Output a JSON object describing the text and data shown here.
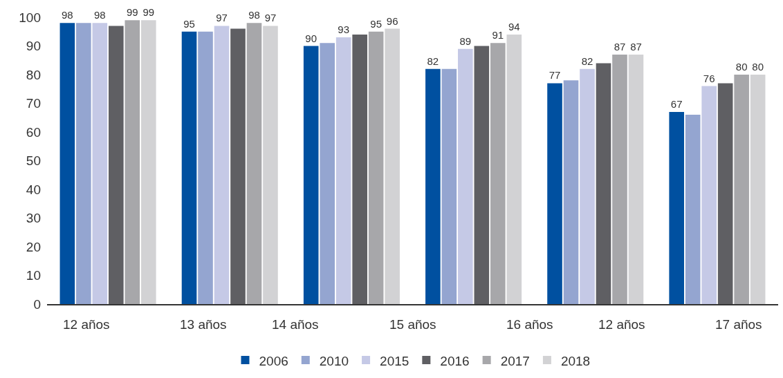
{
  "chart_data": {
    "type": "bar",
    "categories": [
      null,
      null,
      null,
      null,
      null,
      null
    ],
    "annotations": [
      "12 años",
      "13 años",
      "14 años",
      "15 años",
      "16 años",
      "12 años",
      "17 años"
    ],
    "ylim": [
      0,
      100
    ],
    "yticks": [
      0,
      10,
      20,
      30,
      40,
      50,
      60,
      70,
      80,
      90,
      100
    ],
    "legend": "bottom",
    "series": [
      {
        "name": "2006",
        "color": "#0050a0",
        "values": [
          98,
          95,
          90,
          82,
          77,
          67
        ],
        "value_labels": [
          "98",
          "95",
          "90",
          "82",
          "77",
          "67"
        ]
      },
      {
        "name": "2010",
        "color": "#94a5d0",
        "values": [
          98,
          95,
          91,
          82,
          78,
          66
        ],
        "value_labels": [
          null,
          null,
          null,
          null,
          null,
          null
        ]
      },
      {
        "name": "2015",
        "color": "#c5c9e6",
        "values": [
          98,
          97,
          93,
          89,
          82,
          76
        ],
        "value_labels": [
          "98",
          "97",
          "93",
          "89",
          "82",
          "76"
        ]
      },
      {
        "name": "2016",
        "color": "#5f5f63",
        "values": [
          97,
          96,
          94,
          90,
          84,
          77
        ],
        "value_labels": [
          null,
          null,
          null,
          null,
          null,
          null
        ]
      },
      {
        "name": "2017",
        "color": "#a7a7aa",
        "values": [
          99,
          98,
          95,
          91,
          87,
          80
        ],
        "value_labels": [
          "99",
          "98",
          "95",
          "91",
          "87",
          "80"
        ]
      },
      {
        "name": "2018",
        "color": "#d2d2d4",
        "values": [
          99,
          97,
          96,
          94,
          87,
          80
        ],
        "value_labels": [
          "99",
          "97",
          "96",
          "94",
          "87",
          "80"
        ]
      }
    ]
  }
}
